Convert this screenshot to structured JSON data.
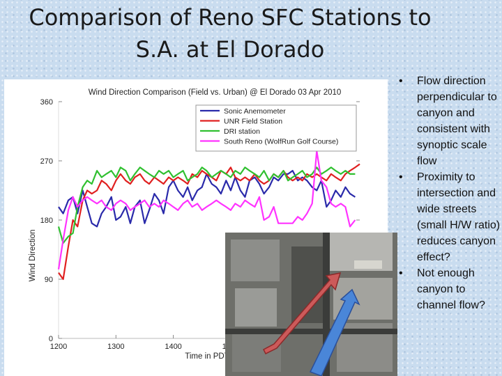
{
  "slide": {
    "title_line1": "Comparison of Reno SFC Stations to",
    "title_line2": "S.A. at El Dorado",
    "bullets": [
      "Flow direction perpendicular to canyon and consistent with synoptic scale flow",
      "Proximity to intersection and wide streets (small H/W ratio) reduces canyon effect?",
      "Not enough canyon to channel flow?"
    ]
  },
  "chart_data": {
    "type": "line",
    "title": "Wind Direction Comparison (Field vs. Urban) @ El Dorado 03 Apr 2010",
    "xlabel": "Time in PDT",
    "ylabel": "Wind Direction",
    "xlim": [
      1200,
      1725
    ],
    "ylim": [
      0,
      360
    ],
    "xticks": [
      {
        "label": "1200",
        "value": 1200
      },
      {
        "label": "1300",
        "value": 1300
      },
      {
        "label": "1400",
        "value": 1400
      },
      {
        "label": "1500",
        "value": 1500
      }
    ],
    "yticks": [
      0,
      90,
      180,
      270,
      360
    ],
    "legend_position": "top-right",
    "colors": {
      "Sonic Anemometer": "#2a2aaa",
      "UNR Field Station": "#e02020",
      "DRI station": "#30c030",
      "South Reno (WolfRun Golf Course)": "#ff33ff"
    },
    "series": [
      {
        "name": "Sonic Anemometer",
        "x": [
          1200,
          1208,
          1217,
          1225,
          1233,
          1242,
          1250,
          1258,
          1267,
          1275,
          1283,
          1292,
          1300,
          1308,
          1317,
          1325,
          1333,
          1342,
          1350,
          1358,
          1367,
          1375,
          1383,
          1392,
          1400,
          1408,
          1417,
          1425,
          1433,
          1442,
          1450,
          1458,
          1467,
          1475,
          1483,
          1492,
          1500,
          1508,
          1517,
          1525,
          1533,
          1542,
          1550,
          1558,
          1567,
          1575,
          1583,
          1592,
          1600,
          1608,
          1617,
          1625,
          1633,
          1642,
          1650,
          1658,
          1667,
          1675,
          1683,
          1692,
          1700,
          1708,
          1717
        ],
        "values": [
          200,
          190,
          210,
          215,
          190,
          225,
          200,
          175,
          170,
          190,
          200,
          215,
          180,
          185,
          200,
          175,
          200,
          210,
          175,
          195,
          220,
          210,
          190,
          230,
          240,
          225,
          215,
          230,
          210,
          225,
          230,
          250,
          235,
          230,
          220,
          240,
          225,
          245,
          225,
          215,
          240,
          245,
          235,
          220,
          230,
          245,
          240,
          250,
          250,
          255,
          240,
          245,
          240,
          230,
          225,
          240,
          200,
          210,
          225,
          215,
          230,
          220,
          215
        ]
      },
      {
        "name": "UNR Field Station",
        "x": [
          1200,
          1208,
          1217,
          1225,
          1233,
          1242,
          1250,
          1258,
          1267,
          1275,
          1283,
          1292,
          1300,
          1308,
          1317,
          1325,
          1333,
          1342,
          1350,
          1358,
          1367,
          1375,
          1383,
          1392,
          1400,
          1408,
          1417,
          1425,
          1433,
          1442,
          1450,
          1458,
          1467,
          1475,
          1483,
          1492,
          1500,
          1508,
          1517,
          1525,
          1533,
          1542,
          1550,
          1558,
          1567,
          1575,
          1583,
          1592,
          1600,
          1608,
          1617,
          1625,
          1633,
          1642,
          1650,
          1658,
          1667,
          1675,
          1683,
          1692,
          1700,
          1708,
          1717,
          1725
        ],
        "values": [
          100,
          90,
          140,
          180,
          170,
          210,
          225,
          220,
          225,
          240,
          235,
          225,
          240,
          250,
          240,
          235,
          245,
          250,
          240,
          235,
          245,
          240,
          235,
          245,
          240,
          245,
          240,
          235,
          250,
          245,
          255,
          250,
          245,
          240,
          255,
          250,
          260,
          245,
          240,
          245,
          240,
          250,
          240,
          235,
          240,
          250,
          245,
          255,
          245,
          240,
          245,
          240,
          250,
          245,
          250,
          245,
          240,
          250,
          245,
          240,
          250,
          255,
          260,
          265
        ]
      },
      {
        "name": "DRI station",
        "x": [
          1200,
          1208,
          1217,
          1225,
          1233,
          1242,
          1250,
          1258,
          1267,
          1275,
          1283,
          1292,
          1300,
          1308,
          1317,
          1325,
          1333,
          1342,
          1350,
          1358,
          1367,
          1375,
          1383,
          1392,
          1400,
          1408,
          1417,
          1425,
          1433,
          1442,
          1450,
          1458,
          1467,
          1475,
          1483,
          1492,
          1500,
          1508,
          1517,
          1525,
          1533,
          1542,
          1550,
          1558,
          1567,
          1575,
          1583,
          1592,
          1600,
          1608,
          1617,
          1625,
          1633,
          1642,
          1650,
          1658,
          1667,
          1675,
          1683,
          1692,
          1700,
          1708,
          1717
        ],
        "values": [
          170,
          145,
          155,
          160,
          200,
          230,
          240,
          235,
          255,
          245,
          250,
          255,
          245,
          260,
          255,
          240,
          250,
          260,
          255,
          250,
          245,
          255,
          250,
          255,
          245,
          250,
          255,
          240,
          245,
          250,
          260,
          255,
          245,
          250,
          255,
          250,
          245,
          255,
          250,
          260,
          255,
          250,
          245,
          255,
          240,
          250,
          245,
          255,
          240,
          245,
          250,
          255,
          245,
          250,
          260,
          250,
          255,
          260,
          255,
          250,
          255,
          250,
          250
        ]
      },
      {
        "name": "South Reno (WolfRun Golf Course)",
        "x": [
          1200,
          1208,
          1217,
          1225,
          1233,
          1242,
          1250,
          1258,
          1267,
          1275,
          1283,
          1292,
          1300,
          1308,
          1317,
          1325,
          1333,
          1342,
          1350,
          1358,
          1367,
          1375,
          1383,
          1392,
          1400,
          1408,
          1417,
          1425,
          1433,
          1442,
          1450,
          1458,
          1467,
          1475,
          1483,
          1492,
          1500,
          1508,
          1517,
          1525,
          1533,
          1542,
          1550,
          1558,
          1567,
          1575,
          1583,
          1592,
          1600,
          1608,
          1617,
          1625,
          1633,
          1642,
          1650,
          1658,
          1667,
          1675,
          1683,
          1692,
          1700,
          1708,
          1717
        ],
        "values": [
          105,
          150,
          195,
          215,
          200,
          210,
          215,
          210,
          205,
          210,
          200,
          195,
          205,
          210,
          205,
          195,
          200,
          205,
          210,
          200,
          205,
          200,
          210,
          205,
          200,
          195,
          205,
          210,
          200,
          205,
          195,
          200,
          205,
          210,
          205,
          200,
          195,
          205,
          200,
          210,
          205,
          200,
          215,
          180,
          185,
          200,
          175,
          175,
          175,
          175,
          185,
          180,
          190,
          205,
          285,
          240,
          230,
          205,
          200,
          205,
          200,
          170,
          180
        ]
      }
    ]
  }
}
